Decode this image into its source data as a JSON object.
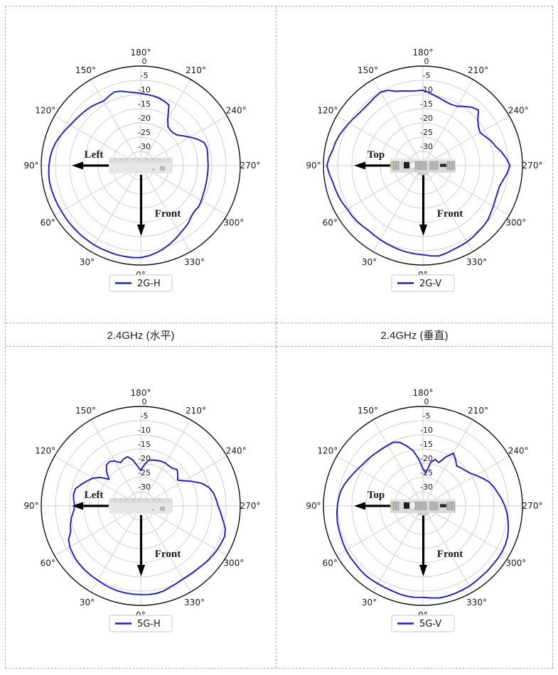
{
  "page": {
    "background": "#ffffff",
    "grid_border_color": "#adadad"
  },
  "captions": {
    "left": "2.4GHz (水平)",
    "right": "2.4GHz (垂直)"
  },
  "polar_axis": {
    "r_ticks_db": [
      0,
      -5,
      -10,
      -15,
      -20,
      -25,
      -30
    ],
    "r_tick_labels": [
      "0",
      "-5",
      "-10",
      "-15",
      "-20",
      "-25",
      "-30"
    ],
    "r_min_db": -35,
    "r_max_db": 0,
    "unit": "dB",
    "theta_labels": [
      "180°",
      "210°",
      "240°",
      "270°",
      "300°",
      "330°",
      "0°",
      "30°",
      "60°",
      "90°",
      "120°",
      "150°"
    ],
    "theta_label_angles_deg": [
      180,
      210,
      240,
      270,
      300,
      330,
      0,
      30,
      60,
      90,
      120,
      150
    ],
    "theta_zero_location": "bottom",
    "grid": true,
    "grid_color": "#cccccc",
    "outline_color": "#111111"
  },
  "chart_data": [
    {
      "type": "polar-line",
      "position": "top-left",
      "legend": "2G-H",
      "caption": "2.4GHz (水平)",
      "line_color": "#1b1bd4",
      "device_view": "top",
      "arrows": {
        "horizontal_label": "Left",
        "vertical_label": "Front"
      },
      "legend_position": "bottom-center",
      "angles_deg_start": 0,
      "angles_deg_step": 5,
      "values_db": [
        -2.6,
        -2.5,
        -2.5,
        -2.5,
        -2.6,
        -2.6,
        -2.6,
        -2.7,
        -2.7,
        -2.8,
        -2.8,
        -2.8,
        -2.8,
        -2.7,
        -2.6,
        -2.5,
        -2.4,
        -2.5,
        -2.7,
        -3.0,
        -3.4,
        -4.0,
        -4.8,
        -5.6,
        -6.4,
        -6.9,
        -7.3,
        -7.6,
        -7.9,
        -8.4,
        -8.8,
        -8.2,
        -7.5,
        -7.9,
        -8.7,
        -9.2,
        -9.6,
        -9.9,
        -10.1,
        -10.4,
        -10.9,
        -11.5,
        -16.0,
        -18.3,
        -18.8,
        -18.8,
        -18.3,
        -16.8,
        -15.0,
        -13.0,
        -11.3,
        -10.9,
        -11.1,
        -11.3,
        -11.3,
        -11.3,
        -11.3,
        -11.2,
        -11.0,
        -10.8,
        -10.4,
        -10.0,
        -10.2,
        -9.8,
        -8.8,
        -8.1,
        -7.4,
        -6.4,
        -5.5,
        -4.6,
        -3.8,
        -3.1
      ]
    },
    {
      "type": "polar-line",
      "position": "top-right",
      "legend": "2G-V",
      "caption": "2.4GHz (垂直)",
      "line_color": "#1b1bd4",
      "device_view": "rear",
      "arrows": {
        "horizontal_label": "Top",
        "vertical_label": "Front"
      },
      "legend_position": "bottom-center",
      "angles_deg_start": 0,
      "angles_deg_step": 5,
      "values_db": [
        -3.6,
        -3.8,
        -4.0,
        -4.2,
        -4.5,
        -4.7,
        -4.9,
        -5.1,
        -5.2,
        -4.9,
        -4.6,
        -4.4,
        -4.3,
        -3.8,
        -3.4,
        -3.1,
        -2.7,
        -1.9,
        -1.2,
        -1.9,
        -2.8,
        -3.2,
        -3.7,
        -4.4,
        -5.0,
        -5.6,
        -6.0,
        -6.1,
        -6.0,
        -5.6,
        -5.2,
        -5.8,
        -7.2,
        -7.8,
        -8.4,
        -8.6,
        -8.5,
        -9.3,
        -10.1,
        -10.7,
        -11.2,
        -11.3,
        -10.9,
        -9.6,
        -8.2,
        -7.4,
        -9.8,
        -11.2,
        -11.8,
        -10.8,
        -9.5,
        -8.6,
        -7.0,
        -5.6,
        -4.4,
        -5.2,
        -6.3,
        -7.1,
        -7.1,
        -6.9,
        -6.4,
        -5.9,
        -5.2,
        -4.9,
        -4.7,
        -4.3,
        -4.0,
        -3.8,
        -3.6,
        -3.1,
        -2.7,
        -3.1
      ]
    },
    {
      "type": "polar-line",
      "position": "bottom-left",
      "legend": "5G-H",
      "caption": "",
      "line_color": "#1b1bd4",
      "device_view": "top",
      "arrows": {
        "horizontal_label": "Left",
        "vertical_label": "Front"
      },
      "legend_position": "bottom-center",
      "angles_deg_start": 0,
      "angles_deg_step": 5,
      "values_db": [
        -3.8,
        -3.8,
        -3.9,
        -4.0,
        -4.2,
        -4.5,
        -4.8,
        -4.9,
        -5.0,
        -5.2,
        -5.4,
        -5.8,
        -6.2,
        -7.0,
        -8.8,
        -9.4,
        -10.2,
        -11.2,
        -11.8,
        -11.3,
        -11.0,
        -11.3,
        -12.8,
        -14.2,
        -15.5,
        -17.5,
        -20.4,
        -18.0,
        -16.2,
        -15.9,
        -16.8,
        -18.2,
        -17.4,
        -17.1,
        -18.5,
        -20.8,
        -22.5,
        -20.5,
        -18.6,
        -18.3,
        -18.0,
        -17.7,
        -17.6,
        -17.8,
        -17.7,
        -16.9,
        -18.0,
        -19.2,
        -17.3,
        -14.7,
        -12.0,
        -10.1,
        -9.0,
        -8.4,
        -7.8,
        -6.8,
        -5.6,
        -4.2,
        -3.6,
        -3.8,
        -4.0,
        -4.3,
        -4.6,
        -5.0,
        -5.2,
        -5.3,
        -5.3,
        -5.0,
        -4.6,
        -4.0,
        -3.7,
        -3.7
      ]
    },
    {
      "type": "polar-line",
      "position": "bottom-right",
      "legend": "5G-V",
      "caption": "",
      "line_color": "#1b1bd4",
      "device_view": "rear",
      "arrows": {
        "horizontal_label": "Top",
        "vertical_label": "Front"
      },
      "legend_position": "bottom-center",
      "angles_deg_start": 0,
      "angles_deg_step": 5,
      "values_db": [
        -2.8,
        -2.7,
        -2.7,
        -2.9,
        -3.2,
        -3.3,
        -3.4,
        -3.3,
        -3.3,
        -3.5,
        -3.7,
        -3.7,
        -3.8,
        -4.0,
        -4.2,
        -4.3,
        -4.4,
        -4.6,
        -4.9,
        -5.2,
        -5.6,
        -6.3,
        -7.2,
        -8.0,
        -8.7,
        -9.3,
        -9.6,
        -9.9,
        -10.2,
        -10.3,
        -10.4,
        -10.3,
        -11.2,
        -13.2,
        -15.3,
        -18.5,
        -22.0,
        -23.4,
        -19.5,
        -18.1,
        -18.8,
        -16.0,
        -13.6,
        -15.0,
        -16.6,
        -16.1,
        -15.6,
        -14.8,
        -13.5,
        -11.9,
        -10.3,
        -9.2,
        -8.3,
        -7.2,
        -6.2,
        -5.3,
        -4.6,
        -3.9,
        -3.3,
        -3.0,
        -2.8,
        -2.8,
        -2.9,
        -2.8,
        -2.8,
        -2.6,
        -2.4,
        -2.3,
        -2.2,
        -2.1,
        -2.1,
        -2.5
      ]
    }
  ]
}
